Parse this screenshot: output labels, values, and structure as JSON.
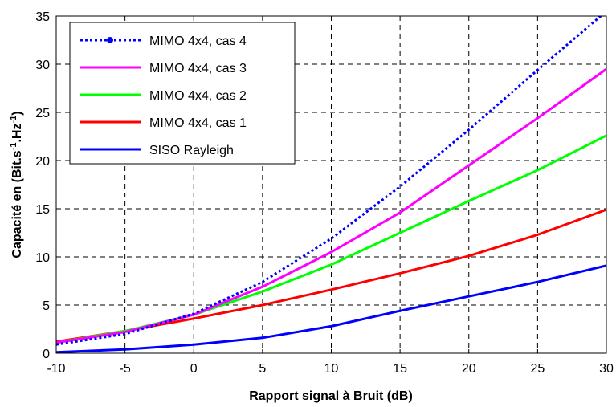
{
  "chart_data": {
    "type": "line",
    "xlabel": "Rapport signal à Bruit (dB)",
    "ylabel_prefix": "Capacité en (Bit.s",
    "ylabel_sup1": "-1",
    "ylabel_mid": ".Hz",
    "ylabel_sup2": "-1",
    "ylabel_suffix": ")",
    "xlim": [
      -10,
      30
    ],
    "ylim": [
      0,
      35
    ],
    "xticks": [
      -10,
      -5,
      0,
      5,
      10,
      15,
      20,
      25,
      30
    ],
    "yticks": [
      0,
      5,
      10,
      15,
      20,
      25,
      30,
      35
    ],
    "grid": true,
    "legend_position": "top-left",
    "x": [
      -10,
      -5,
      0,
      5,
      10,
      15,
      20,
      25,
      30
    ],
    "series": [
      {
        "name": "MIMO 4x4, cas 4",
        "color": "#0000ff",
        "style": "dotted-marker",
        "values": [
          0.9,
          2.0,
          4.1,
          7.4,
          11.9,
          17.3,
          23.2,
          29.4,
          35.5
        ]
      },
      {
        "name": "MIMO 4x4, cas 3",
        "color": "#ff00ff",
        "style": "solid",
        "values": [
          1.1,
          2.2,
          4.0,
          6.9,
          10.5,
          14.6,
          19.5,
          24.4,
          29.5
        ]
      },
      {
        "name": "MIMO 4x4, cas 2",
        "color": "#00ff00",
        "style": "solid",
        "values": [
          1.1,
          2.3,
          4.0,
          6.4,
          9.2,
          12.5,
          15.8,
          19.0,
          22.6
        ]
      },
      {
        "name": "MIMO 4x4, cas 1",
        "color": "#ff0000",
        "style": "solid",
        "values": [
          1.2,
          2.3,
          3.6,
          5.0,
          6.6,
          8.3,
          10.1,
          12.3,
          14.9
        ]
      },
      {
        "name": "SISO Rayleigh",
        "color": "#0000ff",
        "style": "solid",
        "values": [
          0.1,
          0.4,
          0.9,
          1.6,
          2.8,
          4.4,
          5.9,
          7.4,
          9.1
        ]
      }
    ]
  }
}
